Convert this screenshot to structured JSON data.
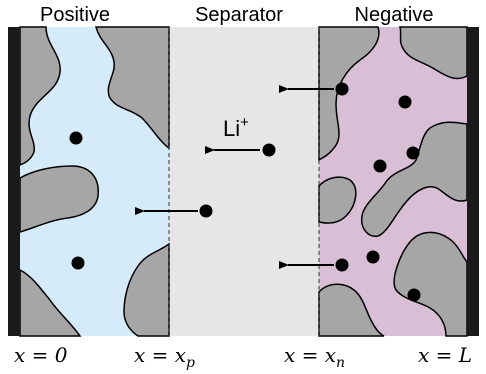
{
  "labels": {
    "positive": "Positive",
    "separator": "Separator",
    "negative": "Negative",
    "ion": "Li",
    "ion_sup": "+"
  },
  "axis_labels": {
    "x0": "x = 0",
    "xp": "x = x",
    "xp_sub": "p",
    "xn": "x = x",
    "xn_sub": "n",
    "xL": "x = L"
  },
  "colors": {
    "positive_fill": "#d6ebfa",
    "separator_fill": "#e6e6e6",
    "negative_fill": "#d9bfd6",
    "particle_fill": "#a6a6a6",
    "collector": "#1a1a1a",
    "ion": "#000000"
  }
}
